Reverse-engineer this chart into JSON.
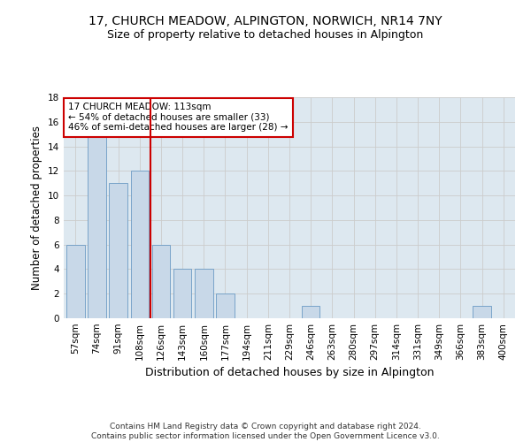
{
  "title": "17, CHURCH MEADOW, ALPINGTON, NORWICH, NR14 7NY",
  "subtitle": "Size of property relative to detached houses in Alpington",
  "xlabel": "Distribution of detached houses by size in Alpington",
  "ylabel": "Number of detached properties",
  "categories": [
    "57sqm",
    "74sqm",
    "91sqm",
    "108sqm",
    "126sqm",
    "143sqm",
    "160sqm",
    "177sqm",
    "194sqm",
    "211sqm",
    "229sqm",
    "246sqm",
    "263sqm",
    "280sqm",
    "297sqm",
    "314sqm",
    "331sqm",
    "349sqm",
    "366sqm",
    "383sqm",
    "400sqm"
  ],
  "values": [
    6,
    15,
    11,
    12,
    6,
    4,
    4,
    2,
    0,
    0,
    0,
    1,
    0,
    0,
    0,
    0,
    0,
    0,
    0,
    1,
    0
  ],
  "bar_color": "#c8d8e8",
  "bar_edge_color": "#6a9ac4",
  "vline_x": 3.5,
  "vline_color": "#cc0000",
  "annotation_text": "17 CHURCH MEADOW: 113sqm\n← 54% of detached houses are smaller (33)\n46% of semi-detached houses are larger (28) →",
  "annotation_box_color": "#ffffff",
  "annotation_box_edge": "#cc0000",
  "ylim": [
    0,
    18
  ],
  "yticks": [
    0,
    2,
    4,
    6,
    8,
    10,
    12,
    14,
    16,
    18
  ],
  "grid_color": "#cccccc",
  "bg_color": "#dde8f0",
  "footnote": "Contains HM Land Registry data © Crown copyright and database right 2024.\nContains public sector information licensed under the Open Government Licence v3.0.",
  "title_fontsize": 10,
  "subtitle_fontsize": 9,
  "ylabel_fontsize": 8.5,
  "xlabel_fontsize": 9,
  "tick_fontsize": 7.5,
  "annot_fontsize": 7.5,
  "footnote_fontsize": 6.5
}
